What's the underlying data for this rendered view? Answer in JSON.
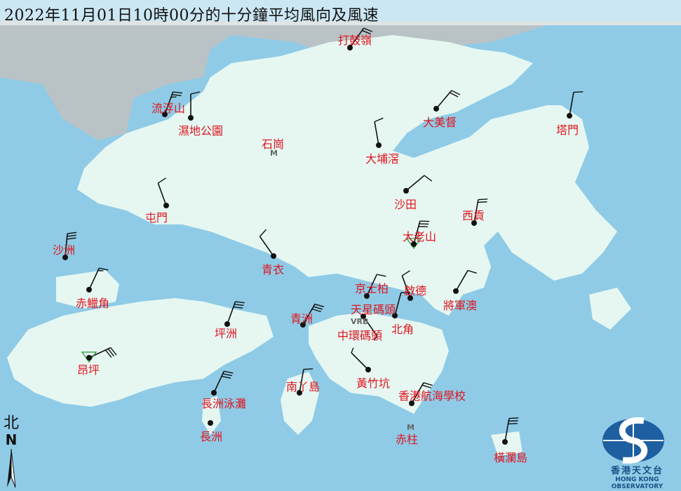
{
  "title": "2022年11月01日10時00分的十分鐘平均風向及風速",
  "colors": {
    "sea": "#8fcbe6",
    "land": "#e6f7f2",
    "label": "#e0141e",
    "barb": "#111111",
    "mainland": "#b9c3c6"
  },
  "north_arrow": {
    "label_zh": "北",
    "label_en": "N"
  },
  "logo": {
    "name_zh": "香港天文台",
    "name_en": "HONG KONG OBSERVATORY"
  },
  "markers": [
    {
      "name": "石崗",
      "symbol": "M"
    },
    {
      "name": "VRB",
      "symbol": "VRB"
    },
    {
      "name": "赤柱",
      "symbol": "M"
    }
  ],
  "stations": [
    {
      "name": "打鼓嶺",
      "wind_dir_deg": 35,
      "wind_speed_kt": 20,
      "symbol": "dot"
    },
    {
      "name": "流浮山",
      "wind_dir_deg": 20,
      "wind_speed_kt": 25,
      "symbol": "dot"
    },
    {
      "name": "濕地公園",
      "wind_dir_deg": 0,
      "wind_speed_kt": 10,
      "symbol": "dot"
    },
    {
      "name": "大美督",
      "wind_dir_deg": 40,
      "wind_speed_kt": 20,
      "symbol": "dot"
    },
    {
      "name": "塔門",
      "wind_dir_deg": 10,
      "wind_speed_kt": 10,
      "symbol": "dot"
    },
    {
      "name": "大埔滘",
      "wind_dir_deg": 350,
      "wind_speed_kt": 10,
      "symbol": "dot"
    },
    {
      "name": "沙田",
      "wind_dir_deg": 50,
      "wind_speed_kt": 10,
      "symbol": "dot"
    },
    {
      "name": "屯門",
      "wind_dir_deg": 340,
      "wind_speed_kt": 10,
      "symbol": "dot"
    },
    {
      "name": "西貢",
      "wind_dir_deg": 10,
      "wind_speed_kt": 20,
      "symbol": "dot"
    },
    {
      "name": "大老山",
      "wind_dir_deg": 15,
      "wind_speed_kt": 30,
      "symbol": "triangle"
    },
    {
      "name": "沙洲",
      "wind_dir_deg": 5,
      "wind_speed_kt": 30,
      "symbol": "dot"
    },
    {
      "name": "青衣",
      "wind_dir_deg": 325,
      "wind_speed_kt": 10,
      "symbol": "dot"
    },
    {
      "name": "赤鱲角",
      "wind_dir_deg": 25,
      "wind_speed_kt": 15,
      "symbol": "dot"
    },
    {
      "name": "京士柏",
      "wind_dir_deg": 25,
      "wind_speed_kt": 10,
      "symbol": "dot"
    },
    {
      "name": "啟德",
      "wind_dir_deg": 340,
      "wind_speed_kt": 10,
      "symbol": "dot"
    },
    {
      "name": "將軍澳",
      "wind_dir_deg": 30,
      "wind_speed_kt": 10,
      "symbol": "dot"
    },
    {
      "name": "天星碼頭",
      "wind_dir_deg": 145,
      "wind_speed_kt": 5,
      "symbol": "dot"
    },
    {
      "name": "北角",
      "wind_dir_deg": 15,
      "wind_speed_kt": 10,
      "symbol": "dot"
    },
    {
      "name": "中環碼頭",
      "wind_dir_deg": null,
      "wind_speed_kt": null,
      "symbol": "none"
    },
    {
      "name": "坪洲",
      "wind_dir_deg": 20,
      "wind_speed_kt": 30,
      "symbol": "dot"
    },
    {
      "name": "青洲",
      "wind_dir_deg": 30,
      "wind_speed_kt": 30,
      "symbol": "dot"
    },
    {
      "name": "昂坪",
      "wind_dir_deg": 65,
      "wind_speed_kt": 30,
      "symbol": "triangle"
    },
    {
      "name": "黃竹坑",
      "wind_dir_deg": 315,
      "wind_speed_kt": 5,
      "symbol": "dot"
    },
    {
      "name": "南丫島",
      "wind_dir_deg": 10,
      "wind_speed_kt": 10,
      "symbol": "dot"
    },
    {
      "name": "香港航海學校",
      "wind_dir_deg": 30,
      "wind_speed_kt": 20,
      "symbol": "dot"
    },
    {
      "name": "長洲泳灘",
      "wind_dir_deg": 25,
      "wind_speed_kt": 30,
      "symbol": "dot"
    },
    {
      "name": "長洲",
      "wind_dir_deg": null,
      "wind_speed_kt": null,
      "symbol": "dot"
    },
    {
      "name": "橫瀾島",
      "wind_dir_deg": 10,
      "wind_speed_kt": 30,
      "symbol": "dot"
    }
  ]
}
